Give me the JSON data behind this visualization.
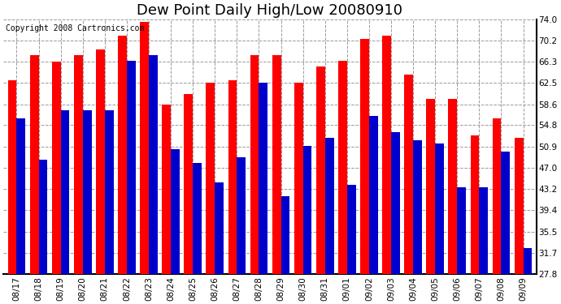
{
  "title": "Dew Point Daily High/Low 20080910",
  "copyright": "Copyright 2008 Cartronics.com",
  "dates": [
    "08/17",
    "08/18",
    "08/19",
    "08/20",
    "08/21",
    "08/22",
    "08/23",
    "08/24",
    "08/25",
    "08/26",
    "08/27",
    "08/28",
    "08/29",
    "08/30",
    "08/31",
    "09/01",
    "09/02",
    "09/03",
    "09/04",
    "09/05",
    "09/06",
    "09/07",
    "09/08",
    "09/09"
  ],
  "highs": [
    63.0,
    67.5,
    66.3,
    67.5,
    68.5,
    71.0,
    73.5,
    58.5,
    60.5,
    62.5,
    63.0,
    67.5,
    67.5,
    62.5,
    65.5,
    66.5,
    70.5,
    71.0,
    64.0,
    59.5,
    59.5,
    53.0,
    56.0,
    52.5
  ],
  "lows": [
    56.0,
    48.5,
    57.5,
    57.5,
    57.5,
    66.5,
    67.5,
    50.5,
    48.0,
    44.5,
    49.0,
    62.5,
    42.0,
    51.0,
    52.5,
    44.0,
    56.5,
    53.5,
    52.0,
    51.5,
    43.5,
    43.5,
    50.0,
    32.5
  ],
  "high_color": "#ff0000",
  "low_color": "#0000cc",
  "bg_color": "#ffffff",
  "plot_bg_color": "#ffffff",
  "grid_color": "#999999",
  "yticks": [
    27.8,
    31.7,
    35.5,
    39.4,
    43.2,
    47.0,
    50.9,
    54.8,
    58.6,
    62.5,
    66.3,
    70.2,
    74.0
  ],
  "ymin": 27.8,
  "ymax": 74.0,
  "bar_width": 0.4,
  "title_fontsize": 13,
  "tick_fontsize": 7.5,
  "copyright_fontsize": 7
}
